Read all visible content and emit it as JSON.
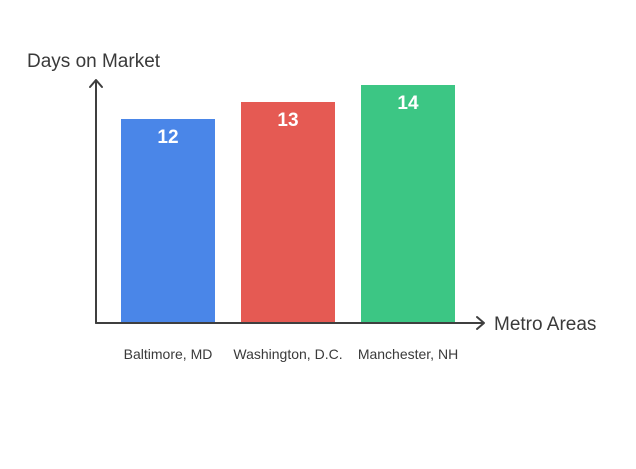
{
  "chart_data": {
    "type": "bar",
    "title": "",
    "ylabel": "Days on Market",
    "xlabel": "Metro Areas",
    "categories": [
      "Baltimore, MD",
      "Washington, D.C.",
      "Manchester, NH"
    ],
    "values": [
      12,
      13,
      14
    ],
    "colors": [
      "#4a86e8",
      "#e55a53",
      "#3cc684"
    ],
    "data_labels": [
      "12",
      "13",
      "14"
    ],
    "y_axis_ticks_shown": false,
    "grid": false,
    "legend": "none"
  }
}
